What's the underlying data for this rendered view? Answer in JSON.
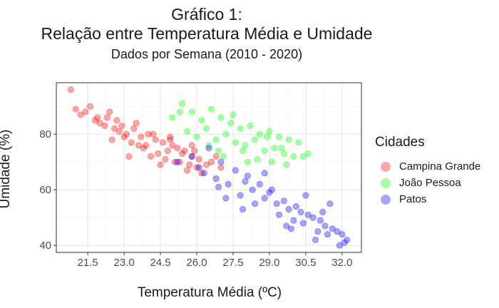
{
  "chart_data": {
    "type": "scatter",
    "title": "Gráfico 1:",
    "title_line2": "Relação entre Temperatura Média e Umidade",
    "subtitle": "Dados por Semana (2010 - 2020)",
    "xlabel": "Temperatura Média (ºC)",
    "ylabel": "Umidade (%)",
    "xlim": [
      20.2,
      32.8
    ],
    "ylim": [
      37.5,
      98.5
    ],
    "xticks": [
      "21.5",
      "23.0",
      "24.5",
      "26.0",
      "27.5",
      "29.0",
      "30.5",
      "32.0"
    ],
    "yticks": [
      "40",
      "60",
      "80"
    ],
    "grid": true,
    "legend": {
      "title": "Cidades",
      "placement": "right",
      "entries": [
        "Campina Grande",
        "João Pessoa",
        "Patos"
      ]
    },
    "series": [
      {
        "name": "Campina Grande",
        "color": "#ff0000",
        "x": [
          20.8,
          21.0,
          21.4,
          21.2,
          21.8,
          22.0,
          22.3,
          22.6,
          22.9,
          23.1,
          23.4,
          23.7,
          24.0,
          24.3,
          24.6,
          24.9,
          25.2,
          25.5,
          25.8,
          26.1,
          26.4,
          21.6,
          22.2,
          22.8,
          23.3,
          23.9,
          24.4,
          24.8,
          25.3,
          25.7,
          26.0,
          22.5,
          23.0,
          23.6,
          24.1,
          24.7,
          25.1,
          25.6,
          26.2,
          21.9,
          22.7,
          23.5,
          24.2,
          25.0,
          25.9,
          23.2,
          24.5,
          25.4,
          26.6,
          22.4,
          23.8,
          24.9,
          25.8,
          26.8,
          27.0
        ],
        "y": [
          96,
          89,
          88,
          87,
          85,
          84,
          86,
          82,
          83,
          80,
          82,
          79,
          80,
          78,
          77,
          79,
          75,
          74,
          72,
          71,
          69,
          90,
          83,
          81,
          77,
          76,
          73,
          74,
          70,
          69,
          68,
          78,
          79,
          76,
          72,
          71,
          70,
          67,
          66,
          86,
          85,
          84,
          80,
          76,
          74,
          72,
          69,
          73,
          70,
          88,
          75,
          78,
          76,
          72,
          68
        ]
      },
      {
        "name": "João Pessoa",
        "color": "#00ff00",
        "x": [
          25.0,
          25.4,
          25.8,
          26.2,
          26.6,
          27.0,
          27.4,
          27.8,
          28.2,
          28.6,
          29.0,
          29.4,
          29.8,
          30.2,
          30.6,
          25.6,
          26.0,
          26.4,
          26.8,
          27.2,
          27.6,
          28.0,
          28.4,
          28.8,
          29.2,
          29.6,
          30.0,
          26.5,
          27.1,
          27.9,
          28.5,
          29.1,
          29.7,
          26.9,
          28.1,
          29.5,
          30.4,
          25.3,
          27.5,
          28.9
        ],
        "y": [
          86,
          91,
          88,
          85,
          89,
          86,
          84,
          82,
          83,
          80,
          81,
          79,
          78,
          77,
          73,
          81,
          79,
          82,
          78,
          80,
          77,
          76,
          78,
          74,
          75,
          73,
          72,
          76,
          72,
          74,
          71,
          70,
          69,
          74,
          70,
          75,
          72,
          88,
          87,
          79
        ]
      },
      {
        "name": "Patos",
        "color": "#0000ff",
        "x": [
          25.2,
          25.8,
          26.3,
          26.8,
          27.3,
          27.8,
          28.3,
          28.8,
          29.3,
          29.8,
          30.3,
          30.8,
          31.3,
          31.8,
          32.2,
          26.5,
          27.0,
          27.6,
          28.1,
          28.6,
          29.1,
          29.6,
          30.1,
          30.6,
          31.1,
          31.6,
          32.0,
          27.2,
          28.4,
          29.4,
          30.4,
          31.4,
          28.0,
          29.0,
          30.0,
          31.0,
          32.1,
          26.1,
          27.9,
          29.9,
          30.9,
          31.9,
          28.8,
          30.5,
          31.5,
          26.9,
          29.7,
          31.2
        ],
        "y": [
          70,
          72,
          66,
          64,
          62,
          58,
          60,
          57,
          55,
          53,
          52,
          50,
          47,
          45,
          42,
          75,
          70,
          67,
          65,
          62,
          60,
          56,
          54,
          51,
          49,
          46,
          44,
          57,
          55,
          51,
          48,
          44,
          63,
          59,
          49,
          45,
          41,
          68,
          53,
          46,
          42,
          40,
          66,
          58,
          55,
          61,
          47,
          52
        ]
      }
    ]
  }
}
